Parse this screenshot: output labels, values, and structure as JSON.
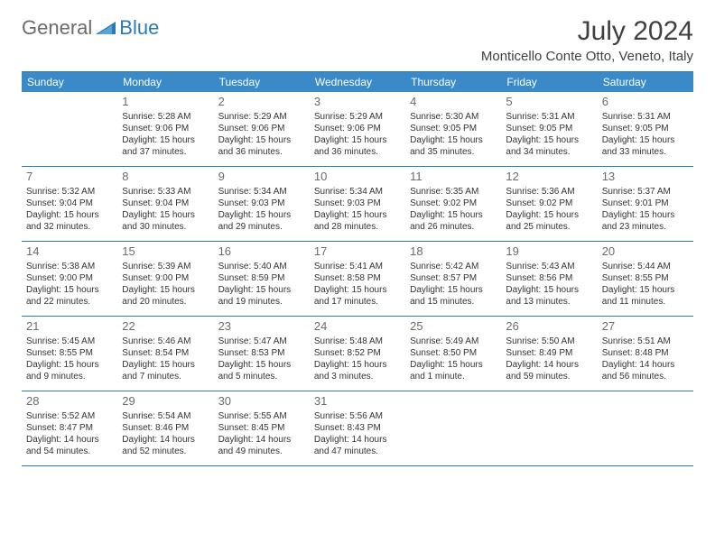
{
  "logo": {
    "text1": "General",
    "text2": "Blue"
  },
  "title": "July 2024",
  "location": "Monticello Conte Otto, Veneto, Italy",
  "weekdays": [
    "Sunday",
    "Monday",
    "Tuesday",
    "Wednesday",
    "Thursday",
    "Friday",
    "Saturday"
  ],
  "colors": {
    "header_bg": "#3a8ac9",
    "border": "#2a7ab8",
    "text": "#333333",
    "daynum": "#6b6b6b",
    "title": "#404040"
  },
  "weeks": [
    [
      null,
      {
        "n": "1",
        "sr": "5:28 AM",
        "ss": "9:06 PM",
        "dl": "15 hours and 37 minutes."
      },
      {
        "n": "2",
        "sr": "5:29 AM",
        "ss": "9:06 PM",
        "dl": "15 hours and 36 minutes."
      },
      {
        "n": "3",
        "sr": "5:29 AM",
        "ss": "9:06 PM",
        "dl": "15 hours and 36 minutes."
      },
      {
        "n": "4",
        "sr": "5:30 AM",
        "ss": "9:05 PM",
        "dl": "15 hours and 35 minutes."
      },
      {
        "n": "5",
        "sr": "5:31 AM",
        "ss": "9:05 PM",
        "dl": "15 hours and 34 minutes."
      },
      {
        "n": "6",
        "sr": "5:31 AM",
        "ss": "9:05 PM",
        "dl": "15 hours and 33 minutes."
      }
    ],
    [
      {
        "n": "7",
        "sr": "5:32 AM",
        "ss": "9:04 PM",
        "dl": "15 hours and 32 minutes."
      },
      {
        "n": "8",
        "sr": "5:33 AM",
        "ss": "9:04 PM",
        "dl": "15 hours and 30 minutes."
      },
      {
        "n": "9",
        "sr": "5:34 AM",
        "ss": "9:03 PM",
        "dl": "15 hours and 29 minutes."
      },
      {
        "n": "10",
        "sr": "5:34 AM",
        "ss": "9:03 PM",
        "dl": "15 hours and 28 minutes."
      },
      {
        "n": "11",
        "sr": "5:35 AM",
        "ss": "9:02 PM",
        "dl": "15 hours and 26 minutes."
      },
      {
        "n": "12",
        "sr": "5:36 AM",
        "ss": "9:02 PM",
        "dl": "15 hours and 25 minutes."
      },
      {
        "n": "13",
        "sr": "5:37 AM",
        "ss": "9:01 PM",
        "dl": "15 hours and 23 minutes."
      }
    ],
    [
      {
        "n": "14",
        "sr": "5:38 AM",
        "ss": "9:00 PM",
        "dl": "15 hours and 22 minutes."
      },
      {
        "n": "15",
        "sr": "5:39 AM",
        "ss": "9:00 PM",
        "dl": "15 hours and 20 minutes."
      },
      {
        "n": "16",
        "sr": "5:40 AM",
        "ss": "8:59 PM",
        "dl": "15 hours and 19 minutes."
      },
      {
        "n": "17",
        "sr": "5:41 AM",
        "ss": "8:58 PM",
        "dl": "15 hours and 17 minutes."
      },
      {
        "n": "18",
        "sr": "5:42 AM",
        "ss": "8:57 PM",
        "dl": "15 hours and 15 minutes."
      },
      {
        "n": "19",
        "sr": "5:43 AM",
        "ss": "8:56 PM",
        "dl": "15 hours and 13 minutes."
      },
      {
        "n": "20",
        "sr": "5:44 AM",
        "ss": "8:55 PM",
        "dl": "15 hours and 11 minutes."
      }
    ],
    [
      {
        "n": "21",
        "sr": "5:45 AM",
        "ss": "8:55 PM",
        "dl": "15 hours and 9 minutes."
      },
      {
        "n": "22",
        "sr": "5:46 AM",
        "ss": "8:54 PM",
        "dl": "15 hours and 7 minutes."
      },
      {
        "n": "23",
        "sr": "5:47 AM",
        "ss": "8:53 PM",
        "dl": "15 hours and 5 minutes."
      },
      {
        "n": "24",
        "sr": "5:48 AM",
        "ss": "8:52 PM",
        "dl": "15 hours and 3 minutes."
      },
      {
        "n": "25",
        "sr": "5:49 AM",
        "ss": "8:50 PM",
        "dl": "15 hours and 1 minute."
      },
      {
        "n": "26",
        "sr": "5:50 AM",
        "ss": "8:49 PM",
        "dl": "14 hours and 59 minutes."
      },
      {
        "n": "27",
        "sr": "5:51 AM",
        "ss": "8:48 PM",
        "dl": "14 hours and 56 minutes."
      }
    ],
    [
      {
        "n": "28",
        "sr": "5:52 AM",
        "ss": "8:47 PM",
        "dl": "14 hours and 54 minutes."
      },
      {
        "n": "29",
        "sr": "5:54 AM",
        "ss": "8:46 PM",
        "dl": "14 hours and 52 minutes."
      },
      {
        "n": "30",
        "sr": "5:55 AM",
        "ss": "8:45 PM",
        "dl": "14 hours and 49 minutes."
      },
      {
        "n": "31",
        "sr": "5:56 AM",
        "ss": "8:43 PM",
        "dl": "14 hours and 47 minutes."
      },
      null,
      null,
      null
    ]
  ],
  "labels": {
    "sunrise": "Sunrise:",
    "sunset": "Sunset:",
    "daylight": "Daylight:"
  }
}
